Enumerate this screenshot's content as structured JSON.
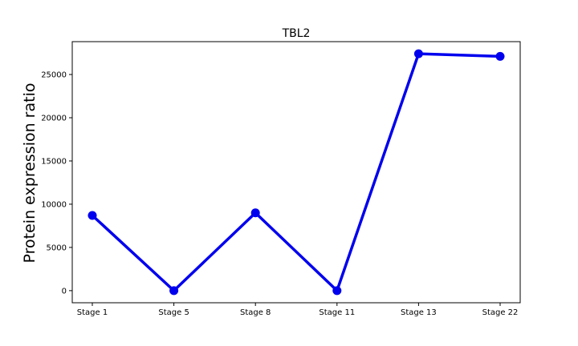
{
  "chart_data": {
    "type": "line",
    "title": "TBL2",
    "xlabel": "",
    "ylabel": "Protein expression ratio",
    "categories": [
      "Stage 1",
      "Stage 5",
      "Stage 8",
      "Stage 11",
      "Stage 13",
      "Stage 22"
    ],
    "series": [
      {
        "values": [
          8700,
          0,
          9000,
          0,
          27400,
          27100
        ],
        "color": "#0000ee",
        "marker": "circle"
      }
    ],
    "ylim": [
      -1400,
      28800
    ],
    "yticks": [
      0,
      5000,
      10000,
      15000,
      20000,
      25000
    ],
    "grid": false,
    "legend": "none"
  }
}
